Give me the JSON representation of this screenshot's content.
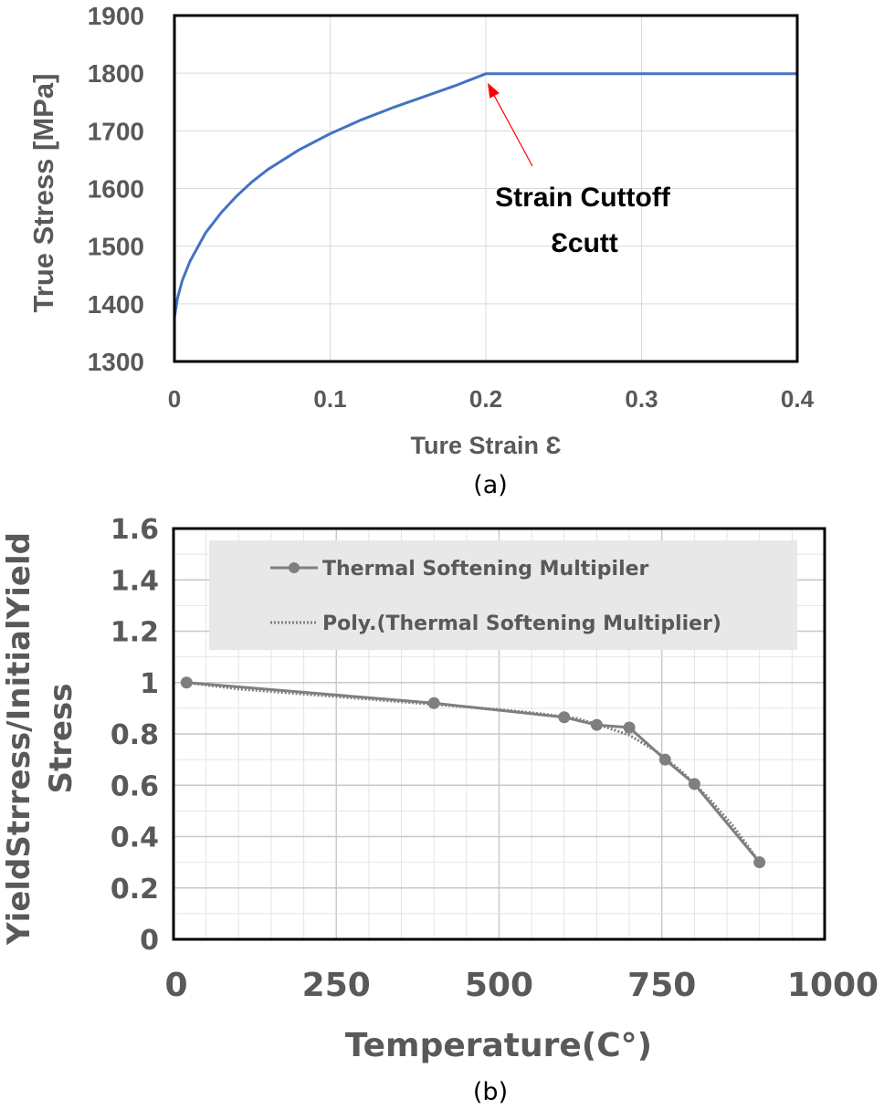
{
  "chart_data": [
    {
      "type": "line",
      "caption": "(a)",
      "xlabel": "Ture Strain Ɛ",
      "ylabel": "True Stress [MPa]",
      "xlim": [
        0,
        0.4
      ],
      "ylim": [
        1300,
        1900
      ],
      "xticks": [
        0,
        0.1,
        0.2,
        0.3,
        0.4
      ],
      "xtick_labels": [
        "0",
        "0.1",
        "0.2",
        "0.3",
        "0.4"
      ],
      "yticks": [
        1300,
        1400,
        1500,
        1600,
        1700,
        1800,
        1900
      ],
      "ytick_labels": [
        "1300",
        "1400",
        "1500",
        "1600",
        "1700",
        "1800",
        "1900"
      ],
      "grid": true,
      "series": [
        {
          "color": "#4472C4",
          "x": [
            0,
            0.002,
            0.005,
            0.01,
            0.02,
            0.03,
            0.04,
            0.05,
            0.06,
            0.08,
            0.1,
            0.12,
            0.14,
            0.16,
            0.18,
            0.2,
            0.25,
            0.3,
            0.35,
            0.4
          ],
          "y": [
            1376,
            1410,
            1440,
            1474,
            1523,
            1558,
            1587,
            1612,
            1633,
            1667,
            1695,
            1719,
            1740,
            1759,
            1778,
            1799,
            1799,
            1799,
            1799,
            1799
          ]
        }
      ],
      "annotation": {
        "lines": [
          "Strain Cuttoff",
          "Ɛcutt"
        ],
        "arrow_to": [
          0.2,
          1799
        ],
        "arrow_color": "#FF0000"
      }
    },
    {
      "type": "line",
      "caption": "(b)",
      "xlabel": "Temperature(C°)",
      "ylabel_lines": [
        "YieldStrress/InitialYield",
        "Stress"
      ],
      "xlim": [
        0,
        1000
      ],
      "ylim": [
        0,
        1.6
      ],
      "xticks": [
        0,
        250,
        500,
        750,
        1000
      ],
      "xtick_labels": [
        "0",
        "250",
        "500",
        "750",
        "1000"
      ],
      "yticks": [
        0,
        0.2,
        0.4,
        0.6,
        0.8,
        1,
        1.2,
        1.4,
        1.6
      ],
      "ytick_labels": [
        "0",
        "0.2",
        "0.4",
        "0.6",
        "0.8",
        "1",
        "1.2",
        "1.4",
        "1.6"
      ],
      "grid": true,
      "legend": "top",
      "series": [
        {
          "name": "Thermal Softening Multipiler",
          "color": "#7F7F7F",
          "style": "solid-marker",
          "x": [
            20,
            400,
            600,
            650,
            700,
            755,
            800,
            900
          ],
          "y": [
            1.0,
            0.92,
            0.865,
            0.835,
            0.825,
            0.7,
            0.605,
            0.3
          ]
        },
        {
          "name": "Poly.(Thermal Softening Multiplier)",
          "color": "#7F7F7F",
          "style": "dotted",
          "x": [
            20,
            100,
            200,
            300,
            400,
            500,
            560,
            620,
            660,
            700,
            740,
            780,
            820,
            860,
            900
          ],
          "y": [
            1.0,
            0.975,
            0.955,
            0.935,
            0.915,
            0.895,
            0.88,
            0.86,
            0.83,
            0.795,
            0.735,
            0.655,
            0.555,
            0.44,
            0.3
          ]
        }
      ]
    }
  ]
}
